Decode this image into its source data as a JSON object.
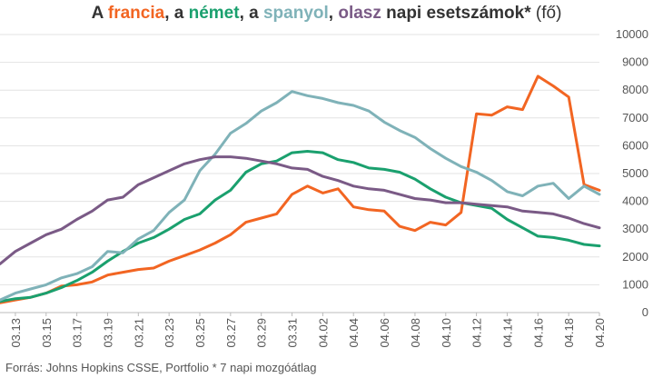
{
  "title": {
    "p1": "A ",
    "fr": "francia",
    "p2": ", a ",
    "de": "német",
    "p3": ", a ",
    "es": "spanyol",
    "p4": ", ",
    "it": "olasz",
    "p5": " napi esetszámok*",
    "p6": " (fő)"
  },
  "source": "Forrás: Johns Hopkins CSSE, Portfolio  * 7 napi mozgóátlag",
  "chart_data": {
    "type": "line",
    "title": "A francia, a német, a spanyol, olasz napi esetszámok* (fő)",
    "x": [
      "03.12",
      "03.13",
      "03.14",
      "03.15",
      "03.16",
      "03.17",
      "03.18",
      "03.19",
      "03.20",
      "03.21",
      "03.22",
      "03.23",
      "03.24",
      "03.25",
      "03.26",
      "03.27",
      "03.28",
      "03.29",
      "03.30",
      "03.31",
      "04.01",
      "04.02",
      "04.03",
      "04.04",
      "04.05",
      "04.06",
      "04.07",
      "04.08",
      "04.09",
      "04.10",
      "04.11",
      "04.12",
      "04.13",
      "04.14",
      "04.15",
      "04.16",
      "04.17",
      "04.18",
      "04.19",
      "04.20"
    ],
    "xticks": [
      "03.13",
      "03.15",
      "03.17",
      "03.19",
      "03.21",
      "03.23",
      "03.25",
      "03.27",
      "03.29",
      "03.31",
      "04.02",
      "04.04",
      "04.06",
      "04.08",
      "04.10",
      "04.12",
      "04.14",
      "04.16",
      "04.18",
      "04.20"
    ],
    "yticks": [
      0,
      1000,
      2000,
      3000,
      4000,
      5000,
      6000,
      7000,
      8000,
      9000,
      10000
    ],
    "ylim": [
      0,
      10000
    ],
    "yaxis_position": "right",
    "grid": true,
    "legend": "none",
    "series": [
      {
        "name": "francia",
        "color": "#f26522",
        "values": [
          350,
          450,
          550,
          700,
          950,
          1000,
          1100,
          1350,
          1450,
          1550,
          1600,
          1850,
          2050,
          2250,
          2500,
          2800,
          3250,
          3400,
          3550,
          4250,
          4550,
          4300,
          4450,
          3800,
          3700,
          3650,
          3100,
          2950,
          3250,
          3150,
          3600,
          7150,
          7100,
          7400,
          7300,
          8500,
          8150,
          7750,
          4600,
          4400
        ]
      },
      {
        "name": "német",
        "color": "#1aa06e",
        "values": [
          400,
          500,
          550,
          700,
          900,
          1150,
          1450,
          1850,
          2200,
          2500,
          2700,
          3000,
          3350,
          3550,
          4050,
          4400,
          5050,
          5350,
          5450,
          5750,
          5800,
          5750,
          5500,
          5400,
          5200,
          5150,
          5050,
          4800,
          4450,
          4150,
          3950,
          3850,
          3750,
          3350,
          3050,
          2750,
          2700,
          2600,
          2450,
          2400
        ]
      },
      {
        "name": "spanyol",
        "color": "#7fb2b8",
        "values": [
          450,
          700,
          850,
          1000,
          1250,
          1400,
          1650,
          2200,
          2150,
          2650,
          2950,
          3600,
          4050,
          5100,
          5700,
          6450,
          6800,
          7250,
          7550,
          7950,
          7800,
          7700,
          7550,
          7450,
          7250,
          6850,
          6550,
          6300,
          5900,
          5550,
          5250,
          5050,
          4750,
          4350,
          4200,
          4550,
          4650,
          4100,
          4550,
          4250
        ]
      },
      {
        "name": "olasz",
        "color": "#7a5a86",
        "values": [
          1750,
          2200,
          2500,
          2800,
          3000,
          3350,
          3650,
          4050,
          4150,
          4600,
          4850,
          5100,
          5350,
          5500,
          5600,
          5600,
          5550,
          5450,
          5350,
          5200,
          5150,
          4900,
          4750,
          4550,
          4450,
          4400,
          4250,
          4100,
          4050,
          3950,
          3950,
          3900,
          3850,
          3800,
          3650,
          3600,
          3550,
          3400,
          3200,
          3050
        ]
      }
    ]
  }
}
